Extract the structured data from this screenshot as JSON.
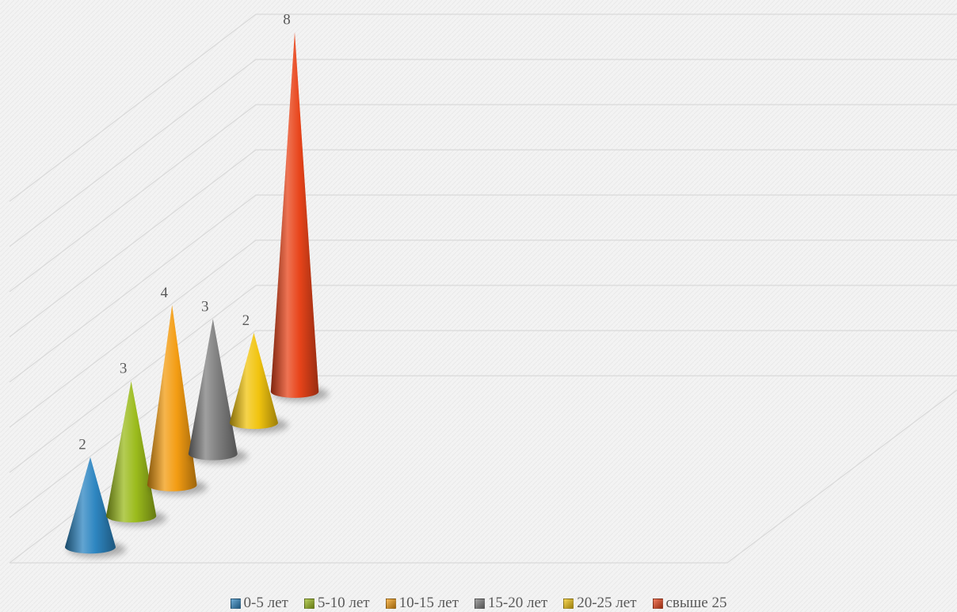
{
  "chart_data": {
    "type": "bar",
    "shape": "cone-3d",
    "categories": [
      "0-5 лет",
      "5-10 лет",
      "10-15 лет",
      "15-20 лет",
      "20-25 лет",
      "свыше 25"
    ],
    "values": [
      2,
      3,
      4,
      3,
      2,
      8
    ],
    "colors": [
      "#2e86c1",
      "#9bbb1c",
      "#f39c12",
      "#7f7f7f",
      "#f1c40f",
      "#e8441a"
    ],
    "data_labels": [
      "2",
      "3",
      "4",
      "3",
      "2",
      "8"
    ],
    "ylim": [
      0,
      8
    ],
    "gridlines": true,
    "legend_position": "bottom",
    "title": "",
    "xlabel": "",
    "ylabel": ""
  }
}
